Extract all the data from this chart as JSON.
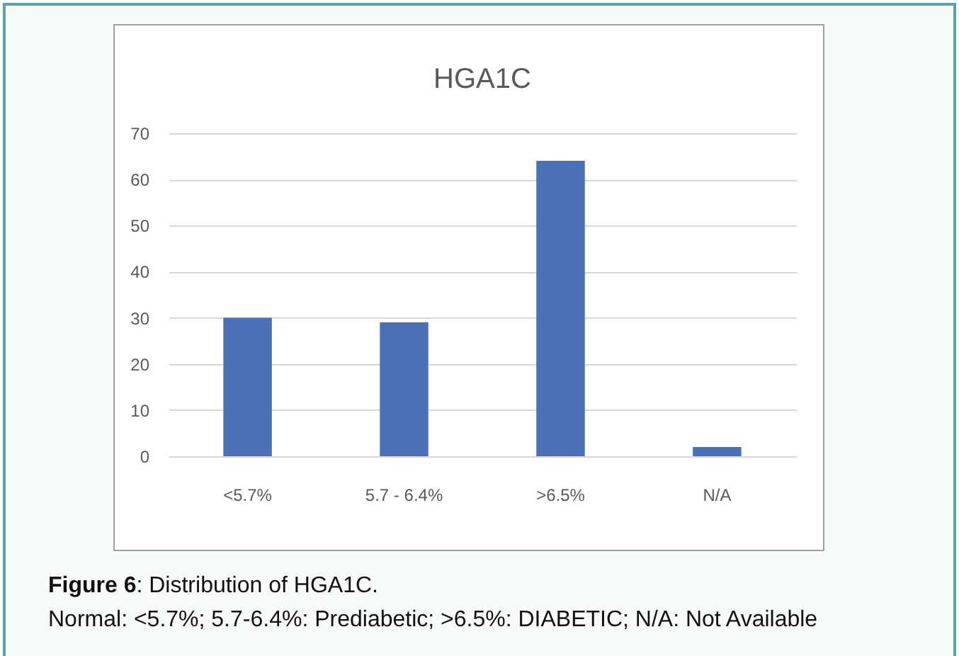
{
  "chart_data": {
    "type": "bar",
    "title": "HGA1C",
    "categories": [
      "<5.7%",
      "5.7 - 6.4%",
      ">6.5%",
      "N/A"
    ],
    "values": [
      30,
      29,
      64,
      2
    ],
    "color": "#4a71b5",
    "ylim": [
      0,
      70
    ],
    "yticks": [
      0,
      10,
      20,
      30,
      40,
      50,
      60,
      70
    ],
    "grid": "y",
    "annotations": [
      "Figure 6: Distribution of HGA1C.",
      "Normal: <5.7%; 5.7-6.4%: Prediabetic; >6.5%: DIABETIC; N/A: Not Available"
    ]
  }
}
